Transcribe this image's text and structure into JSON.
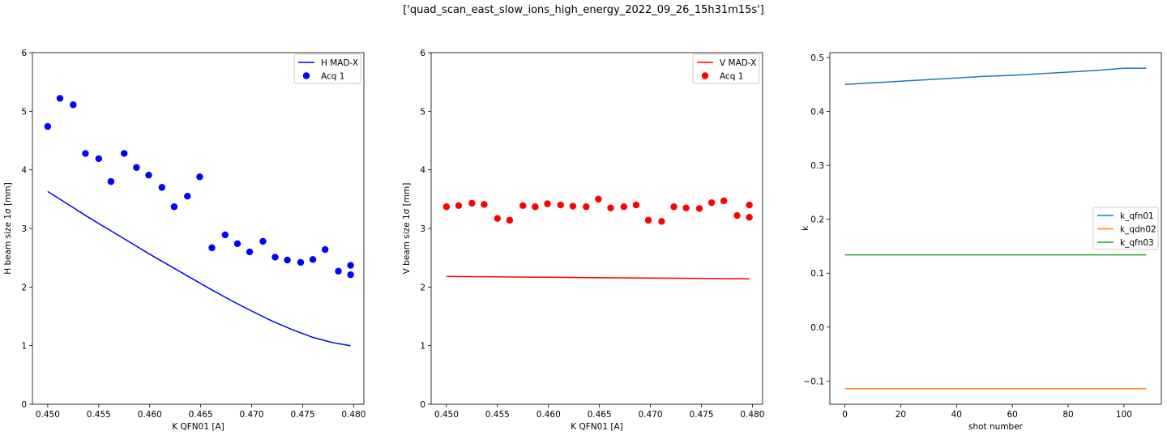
{
  "figure_title": "['quad_scan_east_slow_ions_high_energy_2022_09_26_15h31m15s']",
  "chart_data": [
    {
      "type": "scatter",
      "xlabel": "K QFN01 [A]",
      "ylabel": "H beam size 1σ [mm]",
      "xlim": [
        0.4485,
        0.481
      ],
      "ylim": [
        0,
        6
      ],
      "xticks": [
        0.45,
        0.455,
        0.46,
        0.465,
        0.47,
        0.475,
        0.48
      ],
      "xtick_labels": [
        "0.450",
        "0.455",
        "0.460",
        "0.465",
        "0.470",
        "0.475",
        "0.480"
      ],
      "yticks": [
        0,
        1,
        2,
        3,
        4,
        5,
        6
      ],
      "ytick_labels": [
        "0",
        "1",
        "2",
        "3",
        "4",
        "5",
        "6"
      ],
      "legend_position": "upper right",
      "series": [
        {
          "name": "H MAD-X",
          "kind": "line",
          "color": "#0000ff",
          "x": [
            0.45,
            0.452,
            0.454,
            0.456,
            0.458,
            0.46,
            0.462,
            0.464,
            0.466,
            0.468,
            0.47,
            0.472,
            0.474,
            0.476,
            0.478,
            0.4797
          ],
          "y": [
            3.63,
            3.41,
            3.19,
            2.98,
            2.77,
            2.56,
            2.36,
            2.16,
            1.96,
            1.77,
            1.59,
            1.42,
            1.27,
            1.14,
            1.05,
            1.0
          ]
        },
        {
          "name": "Acq 1",
          "kind": "markers",
          "color": "#0000ff",
          "x": [
            0.45,
            0.4512,
            0.4525,
            0.4537,
            0.455,
            0.4562,
            0.4575,
            0.4587,
            0.4599,
            0.4612,
            0.4624,
            0.4637,
            0.4649,
            0.4661,
            0.4674,
            0.4686,
            0.4698,
            0.4711,
            0.4723,
            0.4735,
            0.4748,
            0.476,
            0.4772,
            0.4785,
            0.4797,
            0.4797
          ],
          "y": [
            4.74,
            5.22,
            5.11,
            4.28,
            4.19,
            3.8,
            4.28,
            4.04,
            3.91,
            3.7,
            3.37,
            3.55,
            3.88,
            2.67,
            2.89,
            2.74,
            2.6,
            2.78,
            2.51,
            2.46,
            2.42,
            2.47,
            2.64,
            2.27,
            2.37,
            2.21
          ]
        }
      ]
    },
    {
      "type": "scatter",
      "xlabel": "K QFN01 [A]",
      "ylabel": "V beam size 1σ [mm]",
      "xlim": [
        0.4485,
        0.481
      ],
      "ylim": [
        0,
        6
      ],
      "xticks": [
        0.45,
        0.455,
        0.46,
        0.465,
        0.47,
        0.475,
        0.48
      ],
      "xtick_labels": [
        "0.450",
        "0.455",
        "0.460",
        "0.465",
        "0.470",
        "0.475",
        "0.480"
      ],
      "yticks": [
        0,
        1,
        2,
        3,
        4,
        5,
        6
      ],
      "ytick_labels": [
        "0",
        "1",
        "2",
        "3",
        "4",
        "5",
        "6"
      ],
      "legend_position": "upper right",
      "series": [
        {
          "name": "V MAD-X",
          "kind": "line",
          "color": "#ff0000",
          "x": [
            0.45,
            0.4797
          ],
          "y": [
            2.18,
            2.14
          ]
        },
        {
          "name": "Acq 1",
          "kind": "markers",
          "color": "#ff0000",
          "x": [
            0.45,
            0.4512,
            0.4525,
            0.4537,
            0.455,
            0.4562,
            0.4575,
            0.4587,
            0.4599,
            0.4612,
            0.4624,
            0.4637,
            0.4649,
            0.4661,
            0.4674,
            0.4686,
            0.4698,
            0.4711,
            0.4723,
            0.4735,
            0.4748,
            0.476,
            0.4772,
            0.4785,
            0.4797,
            0.4797
          ],
          "y": [
            3.37,
            3.39,
            3.43,
            3.41,
            3.17,
            3.14,
            3.39,
            3.37,
            3.42,
            3.4,
            3.38,
            3.37,
            3.5,
            3.35,
            3.37,
            3.4,
            3.14,
            3.12,
            3.37,
            3.35,
            3.34,
            3.44,
            3.47,
            3.22,
            3.4,
            3.19
          ]
        }
      ]
    },
    {
      "type": "line",
      "xlabel": "shot number",
      "ylabel": "k",
      "xlim": [
        -5.4,
        113.4
      ],
      "ylim": [
        -0.143,
        0.509
      ],
      "xticks": [
        0,
        20,
        40,
        60,
        80,
        100
      ],
      "xtick_labels": [
        "0",
        "20",
        "40",
        "60",
        "80",
        "100"
      ],
      "yticks": [
        -0.1,
        0.0,
        0.1,
        0.2,
        0.3,
        0.4,
        0.5
      ],
      "ytick_labels": [
        "−0.1",
        "0.0",
        "0.1",
        "0.2",
        "0.3",
        "0.4",
        "0.5"
      ],
      "legend_position": "center right",
      "series": [
        {
          "name": "k_qfn01",
          "kind": "line",
          "color": "#1f77b4",
          "x": [
            0,
            10,
            20,
            30,
            40,
            50,
            60,
            70,
            80,
            90,
            97,
            100,
            108
          ],
          "y": [
            0.45,
            0.453,
            0.456,
            0.459,
            0.462,
            0.465,
            0.467,
            0.47,
            0.473,
            0.476,
            0.479,
            0.48,
            0.48
          ]
        },
        {
          "name": "k_qdn02",
          "kind": "line",
          "color": "#ff7f0e",
          "x": [
            0,
            108
          ],
          "y": [
            -0.114,
            -0.114
          ]
        },
        {
          "name": "k_qfn03",
          "kind": "line",
          "color": "#2ca02c",
          "x": [
            0,
            108
          ],
          "y": [
            0.134,
            0.134
          ]
        }
      ]
    }
  ]
}
